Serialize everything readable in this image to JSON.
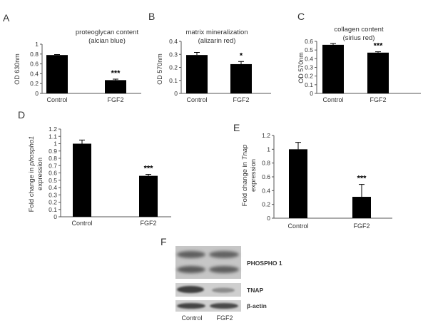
{
  "chart_data": [
    {
      "type": "bar",
      "panel": "A",
      "title_line1": "proteoglycan content",
      "title_line2": "(alcian blue)",
      "ylabel": "OD 630nm",
      "categories": [
        "Control",
        "FGF2"
      ],
      "values": [
        0.78,
        0.27
      ],
      "errors": [
        0.01,
        0.02
      ],
      "significance": [
        "",
        "***"
      ],
      "ylim": [
        0,
        1
      ],
      "yticks": [
        "0",
        "0.2",
        "0.4",
        "0.6",
        "0.8",
        "1"
      ]
    },
    {
      "type": "bar",
      "panel": "B",
      "title_line1": "matrix mineralization",
      "title_line2": "(alizarin red)",
      "ylabel": "OD 570nm",
      "categories": [
        "Control",
        "FGF2"
      ],
      "values": [
        0.295,
        0.225
      ],
      "errors": [
        0.02,
        0.02
      ],
      "significance": [
        "",
        "*"
      ],
      "ylim": [
        0,
        0.4
      ],
      "yticks": [
        "0",
        "0.1",
        "0.2",
        "0.3",
        "0.4"
      ]
    },
    {
      "type": "bar",
      "panel": "C",
      "title_line1": "collagen content",
      "title_line2": "(sirius red)",
      "ylabel": "OD 570nm",
      "categories": [
        "Control",
        "FGF2"
      ],
      "values": [
        0.56,
        0.47
      ],
      "errors": [
        0.015,
        0.01
      ],
      "significance": [
        "",
        "***"
      ],
      "ylim": [
        0,
        0.6
      ],
      "yticks": [
        "0",
        "0.1",
        "0.2",
        "0.3",
        "0.4",
        "0.5",
        "0.6"
      ]
    },
    {
      "type": "bar",
      "panel": "D",
      "ylabel_pre": "Fold change in ",
      "ylabel_gene": "phospho1",
      "ylabel_post": "expression",
      "categories": [
        "Control",
        "FGF2"
      ],
      "values": [
        1.0,
        0.56
      ],
      "errors": [
        0.05,
        0.02
      ],
      "significance": [
        "",
        "***"
      ],
      "ylim": [
        0,
        1.2
      ],
      "yticks": [
        "0",
        "0.1",
        "0.2",
        "0.3",
        "0.4",
        "0.5",
        "0.6",
        "0.7",
        "0.8",
        "0.9",
        "1",
        "1.1",
        "1.2"
      ]
    },
    {
      "type": "bar",
      "panel": "E",
      "ylabel_pre": "Fold change in ",
      "ylabel_gene": "Tnap",
      "ylabel_post": "expression",
      "categories": [
        "Control",
        "FGF2"
      ],
      "values": [
        1.0,
        0.31
      ],
      "errors": [
        0.1,
        0.18
      ],
      "significance": [
        "",
        "***"
      ],
      "ylim": [
        0,
        1.2
      ],
      "yticks": [
        "0",
        "0.2",
        "0.4",
        "0.6",
        "0.8",
        "1",
        "1.2"
      ]
    }
  ],
  "blot": {
    "panel": "F",
    "rows": [
      "PHOSPHO 1",
      "TNAP",
      "β-actin"
    ],
    "lanes": [
      "Control",
      "FGF2"
    ]
  }
}
